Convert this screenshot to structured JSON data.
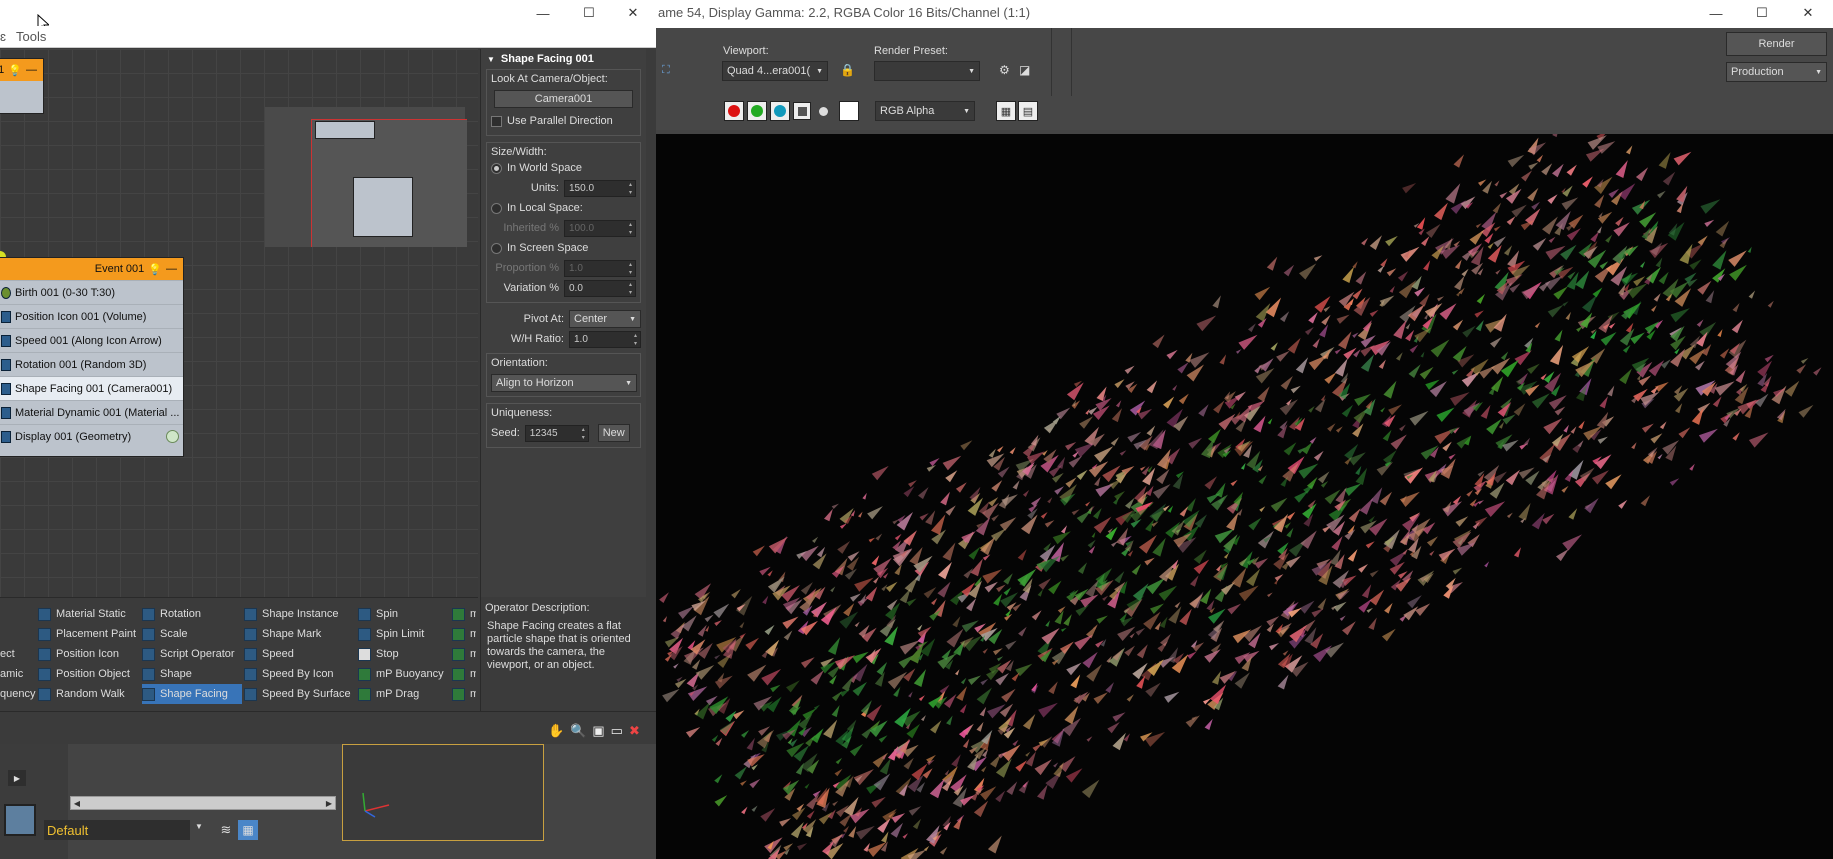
{
  "particle_view": {
    "title": "",
    "menu": [
      "ɛ",
      "Tools"
    ],
    "nodes": {
      "top_node_label": "1",
      "event": {
        "title": "Event 001",
        "operators": [
          "Birth 001 (0-30 T:30)",
          "Position Icon 001 (Volume)",
          "Speed 001 (Along Icon Arrow)",
          "Rotation 001 (Random 3D)",
          "Shape Facing 001 (Camera001)",
          "Material Dynamic 001 (Material ...",
          "Display 001 (Geometry)"
        ],
        "selected_index": 4
      }
    },
    "params": {
      "rollout_title": "Shape Facing 001",
      "look_at_label": "Look At Camera/Object:",
      "camera_button": "Camera001",
      "parallel_label": "Use Parallel Direction",
      "size_width_label": "Size/Width:",
      "world_space_label": "In World Space",
      "units_label": "Units:",
      "units_value": "150.0",
      "local_space_label": "In Local Space:",
      "inherited_label": "Inherited %",
      "inherited_value": "100.0",
      "screen_space_label": "In Screen Space",
      "proportion_label": "Proportion %",
      "proportion_value": "1.0",
      "variation_label": "Variation %",
      "variation_value": "0.0",
      "pivot_label": "Pivot At:",
      "pivot_value": "Center",
      "wh_label": "W/H Ratio:",
      "wh_value": "1.0",
      "orientation_label": "Orientation:",
      "orientation_value": "Align to Horizon",
      "uniqueness_label": "Uniqueness:",
      "seed_label": "Seed:",
      "seed_value": "12345",
      "new_button": "New"
    },
    "depot": {
      "col0": [
        "",
        "",
        "ect",
        "amic",
        "quency"
      ],
      "col1": [
        "Material Static",
        "Placement Paint",
        "Position Icon",
        "Position Object",
        "Random Walk"
      ],
      "col2": [
        "Rotation",
        "Scale",
        "Script Operator",
        "Shape",
        "Shape Facing"
      ],
      "col3": [
        "Shape Instance",
        "Shape Mark",
        "Speed",
        "Speed By Icon",
        "Speed By Surface"
      ],
      "col4": [
        "Spin",
        "Spin Limit",
        "Stop",
        "mP Buoyancy",
        "mP Drag"
      ],
      "col5": [
        "m",
        "m",
        "m",
        "m",
        "m"
      ]
    },
    "description": {
      "heading": "Operator Description:",
      "text": "Shape Facing creates a flat particle shape that is oriented towards the camera, the viewport, or an object."
    }
  },
  "render_frame": {
    "title": "ame 54, Display Gamma: 2.2, RGBA Color 16 Bits/Channel (1:1)",
    "viewport_label": "Viewport:",
    "viewport_value": "Quad 4...era001(",
    "render_preset_label": "Render Preset:",
    "render_preset_value": "",
    "render_button": "Render",
    "production_value": "Production",
    "channel_value": "RGB Alpha"
  },
  "max_bottom": {
    "layer_value": "Default"
  },
  "colors": {
    "event_header": "#f49a1d",
    "selection": "#3874b8",
    "render_bg": "#050505"
  }
}
